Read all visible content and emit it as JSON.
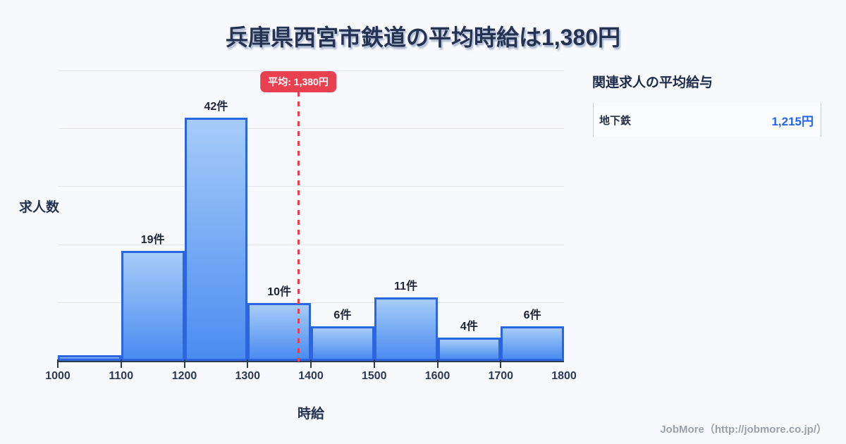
{
  "title": "兵庫県西宮市鉄道の平均時給は1,380円",
  "chart_data": {
    "type": "bar",
    "title": "兵庫県西宮市鉄道の平均時給は1,380円",
    "xlabel": "時給",
    "ylabel": "求人数",
    "xlim": [
      1000,
      1800
    ],
    "ylim": [
      0,
      50
    ],
    "grid": true,
    "gridline_values": [
      10,
      20,
      30,
      40,
      50
    ],
    "x_ticks": [
      1000,
      1100,
      1200,
      1300,
      1400,
      1500,
      1600,
      1700,
      1800
    ],
    "bin_width": 100,
    "bins": [
      {
        "start": 1000,
        "end": 1100,
        "count": 1,
        "label": ""
      },
      {
        "start": 1100,
        "end": 1200,
        "count": 19,
        "label": "19件"
      },
      {
        "start": 1200,
        "end": 1300,
        "count": 42,
        "label": "42件"
      },
      {
        "start": 1300,
        "end": 1400,
        "count": 10,
        "label": "10件"
      },
      {
        "start": 1400,
        "end": 1500,
        "count": 6,
        "label": "6件"
      },
      {
        "start": 1500,
        "end": 1600,
        "count": 11,
        "label": "11件"
      },
      {
        "start": 1600,
        "end": 1700,
        "count": 4,
        "label": "4件"
      },
      {
        "start": 1700,
        "end": 1800,
        "count": 6,
        "label": "6件"
      }
    ],
    "average_line": {
      "value": 1380,
      "label": "平均: 1,380円"
    }
  },
  "side_panel": {
    "heading": "関連求人の平均給与",
    "rows": [
      {
        "name": "地下鉄",
        "value": "1,215円"
      }
    ]
  },
  "footer": {
    "credit": "JobMore（http://jobmore.co.jp/）"
  },
  "colors": {
    "background": "#f7f9fc",
    "title_text": "#243352",
    "bar_fill_top": "#a6ccf8",
    "bar_fill_bottom": "#4a8cf0",
    "bar_border": "#2b66e0",
    "gridline": "#e2e6ef",
    "axis": "#2f3b52",
    "average_red": "#e94050",
    "value_blue": "#2563eb",
    "footer_gray": "#9aa1ab"
  }
}
